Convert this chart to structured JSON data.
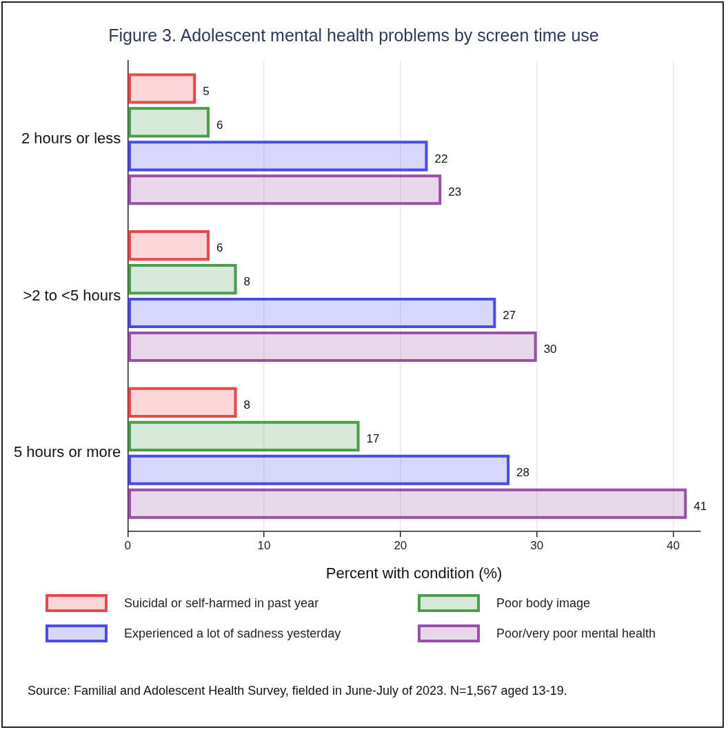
{
  "chart_data": {
    "type": "bar",
    "orientation": "horizontal",
    "title": "Figure 3. Adolescent mental health problems by screen time use",
    "xlabel": "Percent with condition (%)",
    "categories": [
      "2 hours or less",
      ">2 to <5 hours",
      "5 hours or more"
    ],
    "series": [
      {
        "name": "Suicidal or self-harmed in past year",
        "color": "#e8474c",
        "values": [
          5,
          6,
          8
        ]
      },
      {
        "name": "Poor body image",
        "color": "#4a9e4a",
        "values": [
          6,
          8,
          17
        ]
      },
      {
        "name": "Experienced a lot of sadness yesterday",
        "color": "#4b4bea",
        "values": [
          22,
          27,
          28
        ]
      },
      {
        "name": "Poor/very poor mental health",
        "color": "#9b4fa8",
        "values": [
          23,
          30,
          41
        ]
      }
    ],
    "xlim": [
      0,
      42
    ],
    "xticks": [
      0,
      10,
      20,
      30,
      40
    ],
    "grid": "x",
    "legend": "bottom",
    "data_labels": true,
    "annotations": [
      "Source: Familial and Adolescent Health Survey, fielded in June-July of 2023. N=1,567 aged 13-19."
    ]
  }
}
